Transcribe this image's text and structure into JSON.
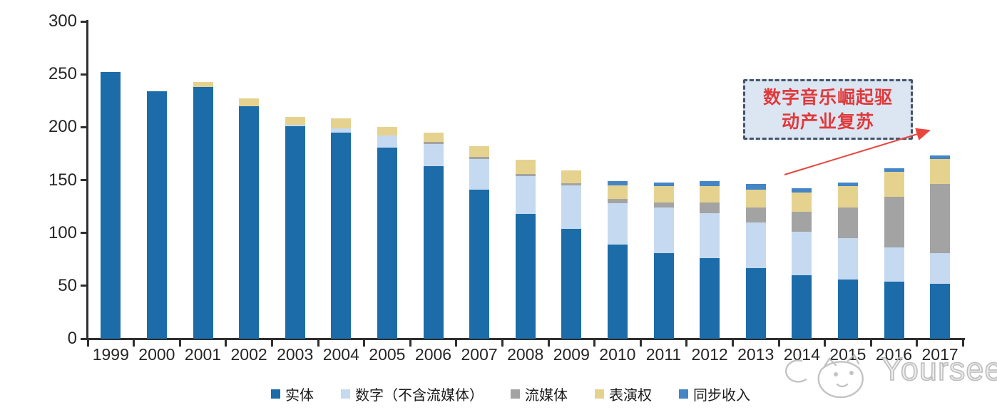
{
  "chart_data": {
    "type": "bar",
    "variant": "stacked",
    "title": "",
    "categories": [
      "1999",
      "2000",
      "2001",
      "2002",
      "2003",
      "2004",
      "2005",
      "2006",
      "2007",
      "2008",
      "2009",
      "2010",
      "2011",
      "2012",
      "2013",
      "2014",
      "2015",
      "2016",
      "2017"
    ],
    "series": [
      {
        "name": "实体",
        "color": "#1b6ca9",
        "values": [
          252,
          234,
          238,
          220,
          201,
          195,
          181,
          163,
          141,
          118,
          104,
          89,
          81,
          76,
          67,
          60,
          56,
          54,
          52
        ]
      },
      {
        "name": "数字（不含流媒体）",
        "color": "#c5daf0",
        "values": [
          0,
          0,
          0,
          0,
          1,
          4,
          11,
          21,
          29,
          36,
          41,
          39,
          43,
          43,
          43,
          41,
          39,
          32,
          29
        ]
      },
      {
        "name": "流媒体",
        "color": "#a3a3a3",
        "values": [
          0,
          0,
          0,
          0,
          0,
          0,
          0,
          2,
          2,
          2,
          2,
          4,
          5,
          10,
          14,
          19,
          29,
          48,
          65
        ]
      },
      {
        "name": "表演权",
        "color": "#e5d28f",
        "values": [
          0,
          0,
          5,
          7,
          8,
          9,
          8,
          9,
          10,
          13,
          12,
          13,
          15,
          15,
          17,
          18,
          20,
          24,
          24
        ]
      },
      {
        "name": "同步收入",
        "color": "#4585c5",
        "values": [
          0,
          0,
          0,
          0,
          0,
          0,
          0,
          0,
          0,
          0,
          0,
          4,
          4,
          5,
          5,
          4,
          4,
          3,
          3
        ]
      }
    ],
    "totals": [
      252,
      234,
      243,
      227,
      210,
      208,
      200,
      195,
      182,
      169,
      159,
      149,
      148,
      149,
      146,
      142,
      148,
      161,
      173
    ],
    "ylim": [
      0,
      300
    ],
    "yticks": [
      "0",
      "50",
      "100",
      "150",
      "200",
      "250",
      "300"
    ],
    "grid": false,
    "legend_position": "bottom"
  },
  "annotation": {
    "line1": "数字音乐崛起驱",
    "line2": "动产业复苏",
    "text_color": "#e03a3c",
    "box_fill": "#dce6f2",
    "box_border": "#44546a",
    "arrow_color": "#e8453c"
  },
  "watermark": {
    "text": "Yourseeker",
    "icon": "cat-doodle-icon",
    "color": "#bdbdbd"
  }
}
